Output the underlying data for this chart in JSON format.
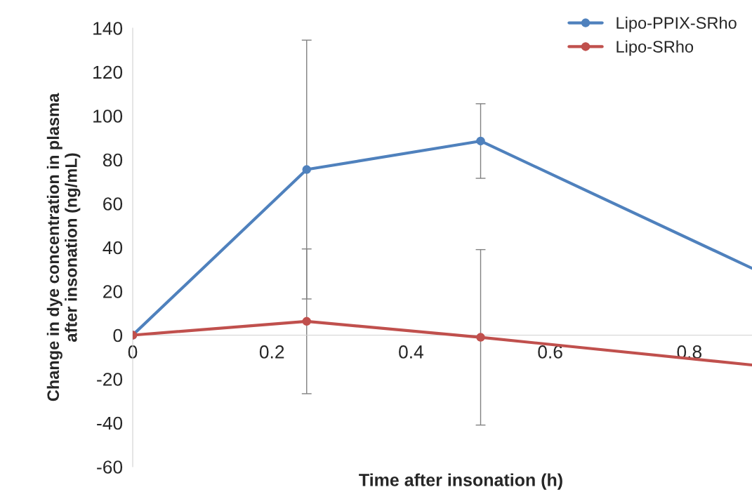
{
  "chart_data": {
    "type": "line",
    "xlabel": "Time after insonation (h)",
    "ylabel": "Change in dye concentration in plasma\nafter insonation (ng/mL)",
    "x": [
      0,
      0.25,
      0.5,
      0.89
    ],
    "series": [
      {
        "name": "Lipo-PPIX-SRho",
        "color": "#4f81bd",
        "values": [
          0,
          75.5,
          88.5,
          30.5
        ],
        "errors": [
          null,
          59,
          17,
          null
        ]
      },
      {
        "name": "Lipo-SRho",
        "color": "#c0504d",
        "values": [
          0,
          6.3,
          -1,
          -13.6
        ],
        "errors": [
          null,
          33,
          40,
          null
        ]
      }
    ],
    "xlim": [
      0,
      0.89
    ],
    "xticks": [
      0,
      0.2,
      0.4,
      0.6,
      0.8
    ],
    "ylim": [
      -60,
      140
    ],
    "yticks": [
      -60,
      -40,
      -20,
      0,
      20,
      40,
      60,
      80,
      100,
      120,
      140
    ],
    "marker": "circle",
    "line_style": "solid",
    "legend": "top right",
    "grid": false
  }
}
